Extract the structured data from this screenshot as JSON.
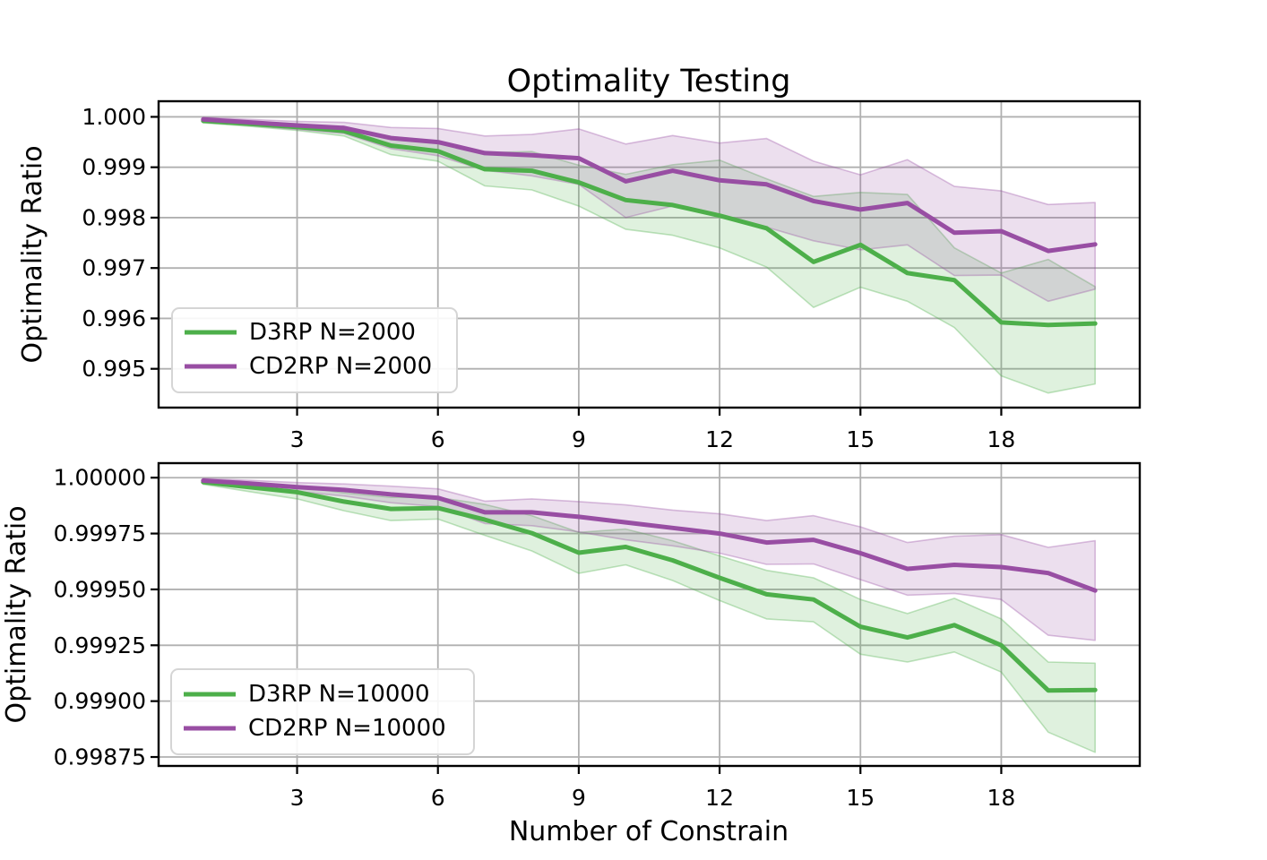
{
  "figure": {
    "title": "Optimality Testing",
    "xlabel": "Number of Constrain",
    "ylabel": "Optimality Ratio",
    "background": "#ffffff",
    "grid_color": "#b0b0b0",
    "colors": {
      "d3rp_green": "#4daf4a",
      "cd2rp_purple": "#984ea3"
    }
  },
  "chart_data": [
    {
      "type": "line",
      "title": "Optimality Testing",
      "xlabel": "",
      "ylabel": "Optimality Ratio",
      "grid": true,
      "legend_position": "lower left",
      "x": [
        1,
        2,
        3,
        4,
        5,
        6,
        7,
        8,
        9,
        10,
        11,
        12,
        13,
        14,
        15,
        16,
        17,
        18,
        19,
        20
      ],
      "xlim": [
        0.05,
        20.95
      ],
      "ylim": [
        0.99423,
        1.00031
      ],
      "xtick_values": [
        3,
        6,
        9,
        12,
        15,
        18
      ],
      "xtick_labels": [
        "3",
        "6",
        "9",
        "12",
        "15",
        "18"
      ],
      "ytick_values": [
        1.0,
        0.999,
        0.998,
        0.997,
        0.996,
        0.995
      ],
      "ytick_labels": [
        "1.000",
        "0.999",
        "0.998",
        "0.997",
        "0.996",
        "0.995"
      ],
      "series": [
        {
          "name": "D3RP N=2000",
          "color": "#4daf4a",
          "values": [
            0.99992,
            0.99986,
            0.9998,
            0.99972,
            0.99943,
            0.99932,
            0.99896,
            0.99893,
            0.9987,
            0.99835,
            0.99825,
            0.99804,
            0.99779,
            0.99712,
            0.99746,
            0.9969,
            0.99676,
            0.99592,
            0.99587,
            0.9959
          ],
          "band_upper": [
            0.99996,
            0.99991,
            0.99986,
            0.99979,
            0.99961,
            0.99952,
            0.99929,
            0.99931,
            0.99904,
            0.99886,
            0.99905,
            0.99914,
            0.99877,
            0.99842,
            0.9985,
            0.99846,
            0.9974,
            0.9969,
            0.99717,
            0.99663
          ],
          "band_lower": [
            0.99988,
            0.99981,
            0.99973,
            0.99962,
            0.99925,
            0.99912,
            0.99863,
            0.99855,
            0.99823,
            0.99777,
            0.99765,
            0.9974,
            0.99702,
            0.99622,
            0.99662,
            0.99634,
            0.99582,
            0.99486,
            0.99452,
            0.9947
          ]
        },
        {
          "name": "CD2RP N=2000",
          "color": "#984ea3",
          "values": [
            0.99995,
            0.99989,
            0.99983,
            0.99978,
            0.99958,
            0.9995,
            0.99928,
            0.99924,
            0.99918,
            0.99872,
            0.99893,
            0.99874,
            0.99866,
            0.99833,
            0.99816,
            0.99829,
            0.9977,
            0.99773,
            0.99734,
            0.99747
          ],
          "band_upper": [
            0.99999,
            0.99995,
            0.99991,
            0.99989,
            0.99979,
            0.99977,
            0.99962,
            0.99965,
            0.99976,
            0.99946,
            0.99963,
            0.99948,
            0.99957,
            0.99912,
            0.99885,
            0.99915,
            0.99862,
            0.99853,
            0.99826,
            0.9983
          ],
          "band_lower": [
            0.99991,
            0.99983,
            0.99975,
            0.99967,
            0.99937,
            0.99923,
            0.99894,
            0.99883,
            0.99866,
            0.998,
            0.99823,
            0.99802,
            0.99781,
            0.99754,
            0.99736,
            0.99746,
            0.99685,
            0.99686,
            0.99634,
            0.99658
          ]
        }
      ]
    },
    {
      "type": "line",
      "title": "",
      "xlabel": "Number of Constrain",
      "ylabel": "Optimality Ratio",
      "grid": true,
      "legend_position": "lower left",
      "x": [
        1,
        2,
        3,
        4,
        5,
        6,
        7,
        8,
        9,
        10,
        11,
        12,
        13,
        14,
        15,
        16,
        17,
        18,
        19,
        20
      ],
      "xlim": [
        0.05,
        20.95
      ],
      "ylim": [
        0.99871,
        1.000065
      ],
      "xtick_values": [
        3,
        6,
        9,
        12,
        15,
        18
      ],
      "xtick_labels": [
        "3",
        "6",
        "9",
        "12",
        "15",
        "18"
      ],
      "ytick_values": [
        1.0,
        0.99975,
        0.9995,
        0.99925,
        0.999,
        0.99875
      ],
      "ytick_labels": [
        "1.00000",
        "0.99975",
        "0.99950",
        "0.99925",
        "0.99900",
        "0.99875"
      ],
      "series": [
        {
          "name": "D3RP N=10000",
          "color": "#4daf4a",
          "values": [
            0.99998,
            0.999957,
            0.999935,
            0.999893,
            0.99986,
            0.999864,
            0.999812,
            0.999752,
            0.999664,
            0.99969,
            0.99963,
            0.999552,
            0.999478,
            0.999455,
            0.999333,
            0.999285,
            0.99934,
            0.99925,
            0.999048,
            0.99905
          ],
          "band_upper": [
            0.99999,
            0.999977,
            0.999962,
            0.999932,
            0.999912,
            0.999912,
            0.99988,
            0.99983,
            0.999755,
            0.99977,
            0.999718,
            0.99965,
            0.999585,
            0.999552,
            0.999455,
            0.999392,
            0.99946,
            0.999368,
            0.999175,
            0.99917
          ],
          "band_lower": [
            0.99997,
            0.999937,
            0.999905,
            0.999852,
            0.999808,
            0.999815,
            0.999742,
            0.999672,
            0.999572,
            0.99961,
            0.99954,
            0.99945,
            0.999368,
            0.999355,
            0.99921,
            0.999175,
            0.99922,
            0.99913,
            0.998861,
            0.998771
          ]
        },
        {
          "name": "CD2RP N=10000",
          "color": "#984ea3",
          "values": [
            0.999987,
            0.999974,
            0.999958,
            0.999945,
            0.999925,
            0.99991,
            0.999845,
            0.999845,
            0.999825,
            0.9998,
            0.999775,
            0.99975,
            0.99971,
            0.999722,
            0.999662,
            0.999592,
            0.99961,
            0.9996,
            0.999573,
            0.999495
          ],
          "band_upper": [
            0.999997,
            0.999988,
            0.999978,
            0.999972,
            0.999962,
            0.99995,
            0.999895,
            0.999905,
            0.999893,
            0.999878,
            0.999855,
            0.999838,
            0.999808,
            0.99983,
            0.99978,
            0.99971,
            0.999738,
            0.999745,
            0.999688,
            0.999718
          ],
          "band_lower": [
            0.999977,
            0.99996,
            0.999938,
            0.999918,
            0.999888,
            0.99987,
            0.999795,
            0.999785,
            0.999757,
            0.999722,
            0.999695,
            0.999662,
            0.999612,
            0.999614,
            0.999544,
            0.999474,
            0.999482,
            0.999455,
            0.999295,
            0.999272
          ]
        }
      ]
    }
  ]
}
